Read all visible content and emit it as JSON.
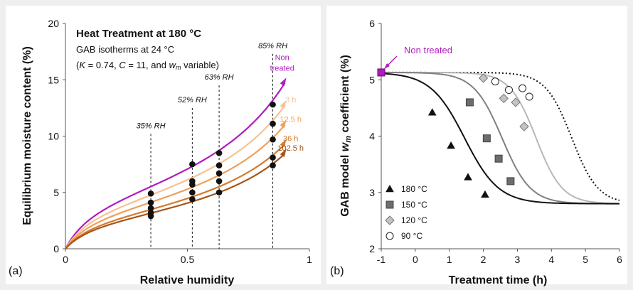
{
  "chart_data": [
    {
      "type": "line",
      "panel_label": "(a)",
      "xlabel": "Relative humidity",
      "ylabel": "Equilibrium moisture content (%)",
      "xlim": [
        0,
        1
      ],
      "ylim": [
        0,
        20
      ],
      "xticks": [
        "0",
        "0.5",
        "1"
      ],
      "yticks": [
        "0",
        "5",
        "10",
        "15",
        "20"
      ],
      "grid": false,
      "annotation": {
        "title": "Heat Treatment at 180 °C",
        "line2": "GAB isotherms at 24 °C",
        "line3_parts": [
          "(",
          "K",
          " = 0.74, ",
          "C",
          " = 11, and  ",
          "w",
          "m",
          " variable)"
        ]
      },
      "rh_lines": [
        {
          "x": 0.35,
          "label": "35% RH",
          "top": 10.2
        },
        {
          "x": 0.52,
          "label": "52% RH",
          "top": 12.5
        },
        {
          "x": 0.63,
          "label": "63% RH",
          "top": 14.5
        },
        {
          "x": 0.85,
          "label": "85% RH",
          "top": 17.3
        }
      ],
      "series": [
        {
          "name": "Non treated",
          "color": "#b01cbd",
          "label_lines": [
            "Non",
            "treated"
          ],
          "wm": 5.15,
          "points": [
            [
              0.35,
              4.9
            ],
            [
              0.52,
              7.5
            ],
            [
              0.63,
              8.5
            ],
            [
              0.85,
              12.8
            ]
          ]
        },
        {
          "name": "3 h",
          "color": "#f7c195",
          "label_lines": [
            "3 h"
          ],
          "wm": 4.45,
          "points": [
            [
              0.35,
              4.1
            ],
            [
              0.52,
              6.0
            ],
            [
              0.63,
              7.4
            ],
            [
              0.85,
              11.1
            ]
          ]
        },
        {
          "name": "12.5 h",
          "color": "#eea05b",
          "label_lines": [
            "12.5 h"
          ],
          "wm": 3.85,
          "points": [
            [
              0.35,
              3.6
            ],
            [
              0.52,
              5.7
            ],
            [
              0.63,
              6.7
            ],
            [
              0.85,
              9.7
            ]
          ]
        },
        {
          "name": "36 h",
          "color": "#d5792d",
          "label_lines": [
            "36 h"
          ],
          "wm": 3.25,
          "points": [
            [
              0.35,
              3.2
            ],
            [
              0.52,
              5.0
            ],
            [
              0.63,
              6.0
            ],
            [
              0.85,
              8.1
            ]
          ]
        },
        {
          "name": "102.5 h",
          "color": "#a65418",
          "label_lines": [
            "102.5 h"
          ],
          "wm": 2.95,
          "points": [
            [
              0.35,
              2.9
            ],
            [
              0.52,
              4.4
            ],
            [
              0.63,
              5.0
            ],
            [
              0.85,
              7.4
            ]
          ]
        }
      ],
      "model": {
        "K": 0.74,
        "C": 11
      }
    },
    {
      "type": "scatter",
      "panel_label": "(b)",
      "xlabel": "Treatment time (h)",
      "ylabel_parts": [
        "GAB model ",
        "w",
        "m",
        " coefficient (%)"
      ],
      "xlim": [
        -1,
        6
      ],
      "ylim": [
        2,
        6
      ],
      "xticks": [
        "-1",
        "0",
        "1",
        "2",
        "3",
        "4",
        "5",
        "6"
      ],
      "yticks": [
        "2",
        "3",
        "4",
        "5",
        "6"
      ],
      "grid": false,
      "callout": "Non treated",
      "callout_color": "#b01cbd",
      "non_treated_point": [
        -1,
        5.13
      ],
      "plateau": {
        "top": 5.13,
        "bottom": 2.8
      },
      "series": [
        {
          "name": "180 °C",
          "marker": "triangle",
          "line_color": "#111111",
          "dash": "",
          "x0": 1.45,
          "k": 2.0,
          "points": [
            [
              0.5,
              4.42
            ],
            [
              1.05,
              3.83
            ],
            [
              1.55,
              3.27
            ],
            [
              2.05,
              2.96
            ]
          ]
        },
        {
          "name": "150 °C",
          "marker": "square",
          "line_color": "#808080",
          "dash": "",
          "x0": 2.55,
          "k": 2.4,
          "points": [
            [
              1.6,
              4.6
            ],
            [
              2.1,
              3.96
            ],
            [
              2.45,
              3.6
            ],
            [
              2.8,
              3.2
            ]
          ]
        },
        {
          "name": "120 °C",
          "marker": "diamond",
          "line_color": "#b8b8b8",
          "dash": "",
          "x0": 3.55,
          "k": 2.6,
          "points": [
            [
              2.0,
              5.03
            ],
            [
              2.6,
              4.67
            ],
            [
              2.95,
              4.6
            ],
            [
              3.2,
              4.17
            ]
          ]
        },
        {
          "name": "90 °C",
          "marker": "circle",
          "line_color": "#111111",
          "dash": "2,3",
          "x0": 4.6,
          "k": 2.6,
          "points": [
            [
              2.35,
              4.97
            ],
            [
              2.75,
              4.82
            ],
            [
              3.15,
              4.85
            ],
            [
              3.35,
              4.7
            ]
          ]
        }
      ],
      "legend_position": "bottom-left"
    }
  ]
}
